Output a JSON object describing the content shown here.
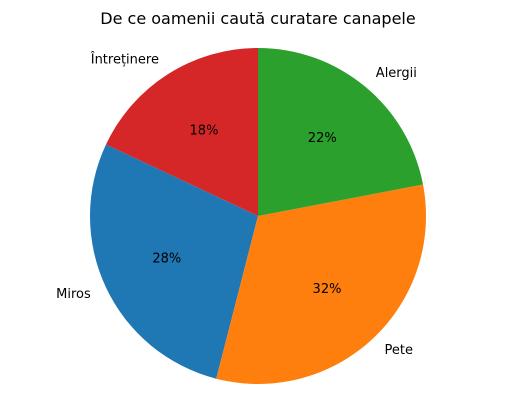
{
  "chart_data": {
    "type": "pie",
    "title": "De ce oamenii caută curatare canapele",
    "categories": [
      "Întreținere",
      "Miros",
      "Pete",
      "Alergii"
    ],
    "values": [
      18,
      28,
      32,
      22
    ],
    "percent_labels": [
      "18%",
      "28%",
      "32%",
      "22%"
    ],
    "colors": [
      "#d62728",
      "#1f77b4",
      "#ff7f0e",
      "#2ca02c"
    ],
    "start_angle": 90,
    "direction": "counterclockwise",
    "legend": "none"
  }
}
